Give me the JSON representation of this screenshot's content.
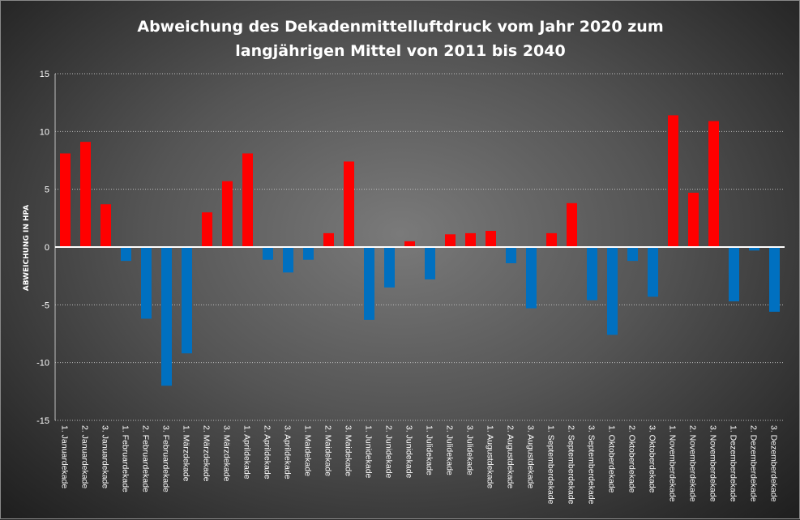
{
  "chart_data": {
    "type": "bar",
    "title_line1": "Abweichung des Dekadenmittelluftdruck vom Jahr 2020 zum",
    "title_line2": "langjährigen Mittel von 2011 bis 2040",
    "ylabel": "ABWEICHUNG IN HPA",
    "xlabel": "",
    "ylim": [
      -15,
      15
    ],
    "yticks": [
      15,
      10,
      5,
      0,
      -5,
      -10,
      -15
    ],
    "grid": true,
    "colors": {
      "positive": "#ff0000",
      "negative": "#0070c0",
      "zero_line": "#ffffff",
      "grid": "#bfbfbf"
    },
    "categories": [
      "1. Januardekade",
      "2. Januardekade",
      "3. Januardekade",
      "1. Februardekade",
      "2. Februardekade",
      "3. Februardekade",
      "1. Märzdekade",
      "2. Märzdekade",
      "3. Märzdekade",
      "1. Aprildekade",
      "2. Aprildekade",
      "3. Aprildekade",
      "1. Maidekade",
      "2. Maidekade",
      "3. Maidekade",
      "1. Junidekade",
      "2. Junidekade",
      "3. Junidekade",
      "1. Julidekade",
      "2. Julidekade",
      "3. Julidekade",
      "1. Augustdekade",
      "2. Augustdekade",
      "3. Augustdekade",
      "1. Septemberdekade",
      "2. Septemberdekade",
      "3. Septemberdekade",
      "1. Oktoberdekade",
      "2. Oktoberdekade",
      "3. Oktoberdekade",
      "1. Novemberdekade",
      "2. Novemberdekade",
      "3. Novemberdekade",
      "1. Dezemberdekade",
      "2. Dezemberdekade",
      "3. Dezemberdekade"
    ],
    "values": [
      8.1,
      9.1,
      3.7,
      -1.2,
      -6.2,
      -12.0,
      -9.2,
      3.0,
      5.7,
      8.1,
      -1.1,
      -2.2,
      -1.1,
      1.2,
      7.4,
      -6.3,
      -3.5,
      0.5,
      -2.8,
      1.1,
      1.2,
      1.4,
      -1.4,
      -5.3,
      1.2,
      3.8,
      -4.6,
      -7.6,
      -1.2,
      -4.3,
      11.4,
      4.7,
      10.9,
      -4.7,
      -0.3,
      -5.6
    ]
  }
}
